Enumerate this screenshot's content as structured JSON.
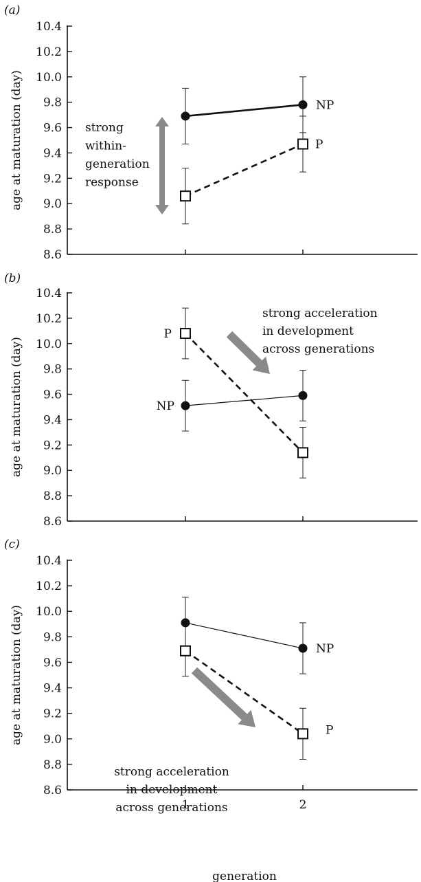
{
  "figure": {
    "xlabel": "generation"
  },
  "chart_data": [
    {
      "panel_label": "(a)",
      "type": "line",
      "ylabel": "age at maturation (day)",
      "ylim": [
        8.6,
        10.4
      ],
      "yticks": [
        "8.6",
        "8.8",
        "9.0",
        "9.2",
        "9.4",
        "9.6",
        "9.8",
        "10.0",
        "10.2",
        "10.4"
      ],
      "xticks": [],
      "x": [
        1,
        2
      ],
      "series": [
        {
          "name": "NP",
          "values": [
            9.69,
            9.78
          ],
          "err": [
            0.22,
            0.22
          ],
          "marker": "filled-circle",
          "line": "solid-thick"
        },
        {
          "name": "P",
          "values": [
            9.06,
            9.47
          ],
          "err": [
            0.22,
            0.22
          ],
          "marker": "open-square",
          "line": "dashed"
        }
      ],
      "annotation": {
        "lines": [
          "strong",
          "within-",
          "generation",
          "response"
        ],
        "arrow": "vertical-double"
      }
    },
    {
      "panel_label": "(b)",
      "type": "line",
      "ylabel": "age at maturation (day)",
      "ylim": [
        8.6,
        10.4
      ],
      "yticks": [
        "8.6",
        "8.8",
        "9.0",
        "9.2",
        "9.4",
        "9.6",
        "9.8",
        "10.0",
        "10.2",
        "10.4"
      ],
      "xticks": [],
      "x": [
        1,
        2
      ],
      "series": [
        {
          "name": "NP",
          "values": [
            9.51,
            9.59
          ],
          "err": [
            0.2,
            0.2
          ],
          "marker": "filled-circle",
          "line": "solid-thin"
        },
        {
          "name": "P",
          "values": [
            10.08,
            9.14
          ],
          "err": [
            0.2,
            0.2
          ],
          "marker": "open-square",
          "line": "dashed"
        }
      ],
      "annotation": {
        "lines": [
          "strong acceleration",
          "in development",
          "across generations"
        ],
        "arrow": "diagonal-down"
      }
    },
    {
      "panel_label": "(c)",
      "type": "line",
      "ylabel": "age at maturation (day)",
      "ylim": [
        8.6,
        10.4
      ],
      "yticks": [
        "8.6",
        "8.8",
        "9.0",
        "9.2",
        "9.4",
        "9.6",
        "9.8",
        "10.0",
        "10.2",
        "10.4"
      ],
      "xticks": [
        "1",
        "2"
      ],
      "x": [
        1,
        2
      ],
      "series": [
        {
          "name": "NP",
          "values": [
            9.91,
            9.71
          ],
          "err": [
            0.2,
            0.2
          ],
          "marker": "filled-circle",
          "line": "solid-thin"
        },
        {
          "name": "P",
          "values": [
            9.69,
            9.04
          ],
          "err": [
            0.2,
            0.2
          ],
          "marker": "open-square",
          "line": "dashed"
        }
      ],
      "annotation": {
        "lines": [
          "strong acceleration",
          "in development",
          "across generations"
        ],
        "arrow": "diagonal-down"
      }
    }
  ]
}
